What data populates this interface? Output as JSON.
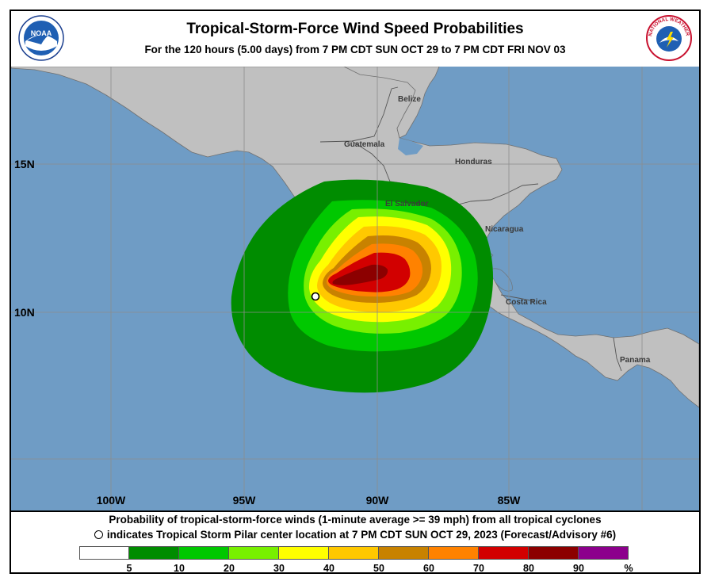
{
  "header": {
    "title": "Tropical-Storm-Force Wind Speed Probabilities",
    "subtitle": "For the 120 hours (5.00 days) from 7 PM CDT SUN OCT 29 to 7 PM CDT FRI NOV 03"
  },
  "logos": {
    "left": {
      "icon": "noaa-logo-icon",
      "text": "NOAA"
    },
    "right": {
      "icon": "nws-logo-icon",
      "text": "NATIONAL WEATHER SERVICE"
    }
  },
  "map": {
    "lat_labels": [
      "15N",
      "10N"
    ],
    "lon_labels": [
      "100W",
      "95W",
      "90W",
      "85W"
    ],
    "countries": [
      "Belize",
      "Guatemala",
      "Honduras",
      "El Salvador",
      "Nicaragua",
      "Costa Rica",
      "Panama"
    ],
    "colors": {
      "ocean": "#6f9cc5",
      "land": "#c0c0c0",
      "grid": "#8c8c8c"
    },
    "storm_marker": {
      "lat": 10.9,
      "lon": 92.4,
      "icon": "storm-center-marker-icon"
    }
  },
  "footer": {
    "line1": "Probability of tropical-storm-force winds (1-minute average >= 39 mph) from all tropical cyclones",
    "line2": "indicates Tropical Storm Pilar center location at 7 PM CDT SUN OCT 29, 2023 (Forecast/Advisory #6)"
  },
  "legend": {
    "colors": [
      "#ffffff",
      "#008c00",
      "#00c800",
      "#78f000",
      "#ffff00",
      "#ffc800",
      "#c88200",
      "#ff8200",
      "#d20000",
      "#8c0000",
      "#8c008c"
    ],
    "labels": [
      "5",
      "10",
      "20",
      "30",
      "40",
      "50",
      "60",
      "70",
      "80",
      "90",
      "%"
    ]
  }
}
